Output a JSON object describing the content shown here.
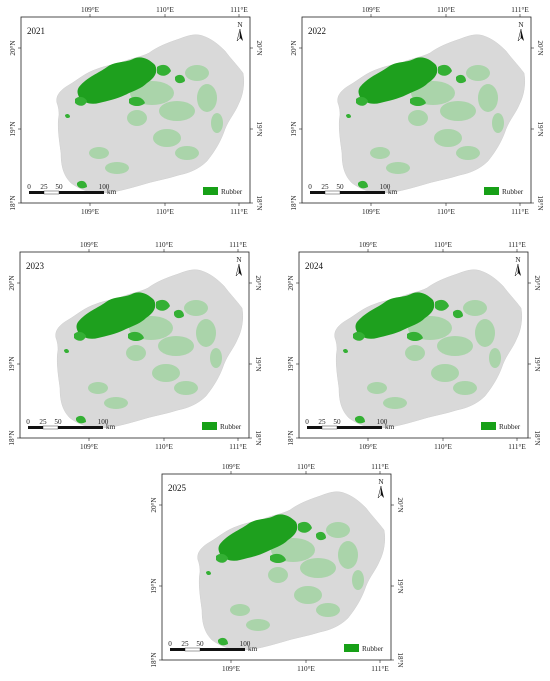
{
  "figure": {
    "panels": [
      {
        "year": "2021"
      },
      {
        "year": "2022"
      },
      {
        "year": "2023"
      },
      {
        "year": "2024"
      },
      {
        "year": "2025"
      }
    ],
    "longitude_ticks": [
      "109°E",
      "110°E",
      "111°E"
    ],
    "latitude_ticks": [
      "20°N",
      "19°N",
      "18°N"
    ],
    "north_arrow_label": "N",
    "scale_bar": {
      "ticks": [
        "0",
        "25",
        "50",
        "100"
      ],
      "unit": "km"
    },
    "legend": {
      "label": "Rubber",
      "color": "#17a017"
    },
    "colors": {
      "land": "#d9d9d9",
      "rubber": "#1ea01e",
      "background": "#ffffff"
    }
  }
}
